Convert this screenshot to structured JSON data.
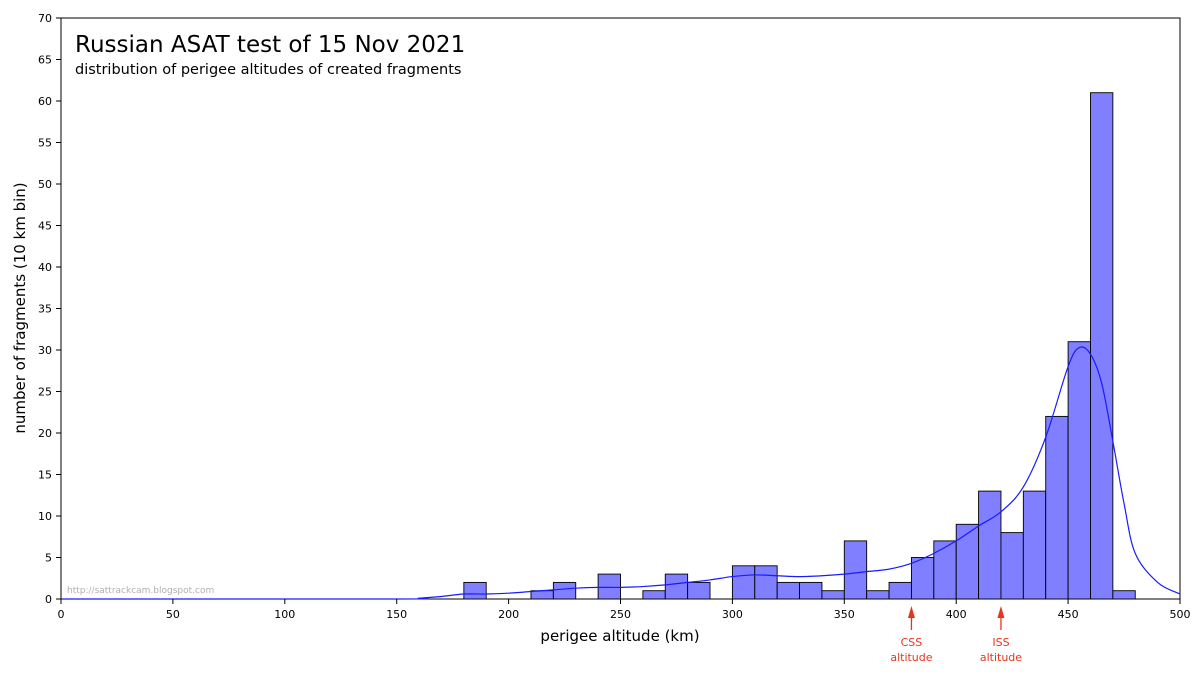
{
  "chart_data": {
    "type": "bar",
    "title": "Russian ASAT test of 15 Nov 2021",
    "subtitle": "distribution of perigee altitudes of created fragments",
    "xlabel": "perigee altitude (km)",
    "ylabel": "number of fragments (10 km bin)",
    "xlim": [
      0,
      500
    ],
    "ylim": [
      0,
      70
    ],
    "x_ticks": [
      0,
      50,
      100,
      150,
      200,
      250,
      300,
      350,
      400,
      450,
      500
    ],
    "y_ticks": [
      0,
      5,
      10,
      15,
      20,
      25,
      30,
      35,
      40,
      45,
      50,
      55,
      60,
      65,
      70
    ],
    "bin_width": 10,
    "bins": [
      {
        "x0": 180,
        "x1": 190,
        "count": 2
      },
      {
        "x0": 210,
        "x1": 220,
        "count": 1
      },
      {
        "x0": 220,
        "x1": 230,
        "count": 2
      },
      {
        "x0": 240,
        "x1": 250,
        "count": 3
      },
      {
        "x0": 260,
        "x1": 270,
        "count": 1
      },
      {
        "x0": 270,
        "x1": 280,
        "count": 3
      },
      {
        "x0": 280,
        "x1": 290,
        "count": 2
      },
      {
        "x0": 300,
        "x1": 310,
        "count": 4
      },
      {
        "x0": 310,
        "x1": 320,
        "count": 4
      },
      {
        "x0": 320,
        "x1": 330,
        "count": 2
      },
      {
        "x0": 330,
        "x1": 340,
        "count": 2
      },
      {
        "x0": 340,
        "x1": 350,
        "count": 1
      },
      {
        "x0": 350,
        "x1": 360,
        "count": 7
      },
      {
        "x0": 360,
        "x1": 370,
        "count": 1
      },
      {
        "x0": 370,
        "x1": 380,
        "count": 2
      },
      {
        "x0": 380,
        "x1": 390,
        "count": 5
      },
      {
        "x0": 390,
        "x1": 400,
        "count": 7
      },
      {
        "x0": 400,
        "x1": 410,
        "count": 9
      },
      {
        "x0": 410,
        "x1": 420,
        "count": 13
      },
      {
        "x0": 420,
        "x1": 430,
        "count": 8
      },
      {
        "x0": 430,
        "x1": 440,
        "count": 13
      },
      {
        "x0": 440,
        "x1": 450,
        "count": 22
      },
      {
        "x0": 450,
        "x1": 460,
        "count": 31
      },
      {
        "x0": 460,
        "x1": 470,
        "count": 61
      },
      {
        "x0": 470,
        "x1": 480,
        "count": 1
      }
    ],
    "density_curve": {
      "x": [
        0,
        150,
        160,
        170,
        180,
        190,
        200,
        210,
        220,
        230,
        240,
        250,
        260,
        270,
        280,
        290,
        300,
        310,
        320,
        330,
        340,
        350,
        360,
        370,
        380,
        390,
        400,
        410,
        420,
        430,
        440,
        450,
        455,
        460,
        465,
        470,
        475,
        480,
        490,
        500
      ],
      "y": [
        0,
        0,
        0.1,
        0.3,
        0.6,
        0.6,
        0.7,
        0.9,
        1.1,
        1.3,
        1.4,
        1.4,
        1.5,
        1.7,
        2.0,
        2.3,
        2.7,
        2.9,
        2.8,
        2.7,
        2.8,
        3.0,
        3.3,
        3.6,
        4.3,
        5.5,
        7.0,
        8.8,
        10.5,
        13.5,
        19.5,
        28.0,
        30.3,
        29.5,
        26.0,
        19.0,
        11.5,
        5.5,
        2.0,
        0.6
      ],
      "color": "#1a1aff"
    },
    "bar_fill": "#7f7fff",
    "bar_stroke": "#000000",
    "grid": false,
    "annotations": [
      {
        "x": 380,
        "line1": "CSS",
        "line2": "altitude",
        "color": "#e8351a"
      },
      {
        "x": 420,
        "line1": "ISS",
        "line2": "altitude",
        "color": "#e8351a"
      }
    ],
    "watermark": "http://sattrackcam.blogspot.com"
  }
}
